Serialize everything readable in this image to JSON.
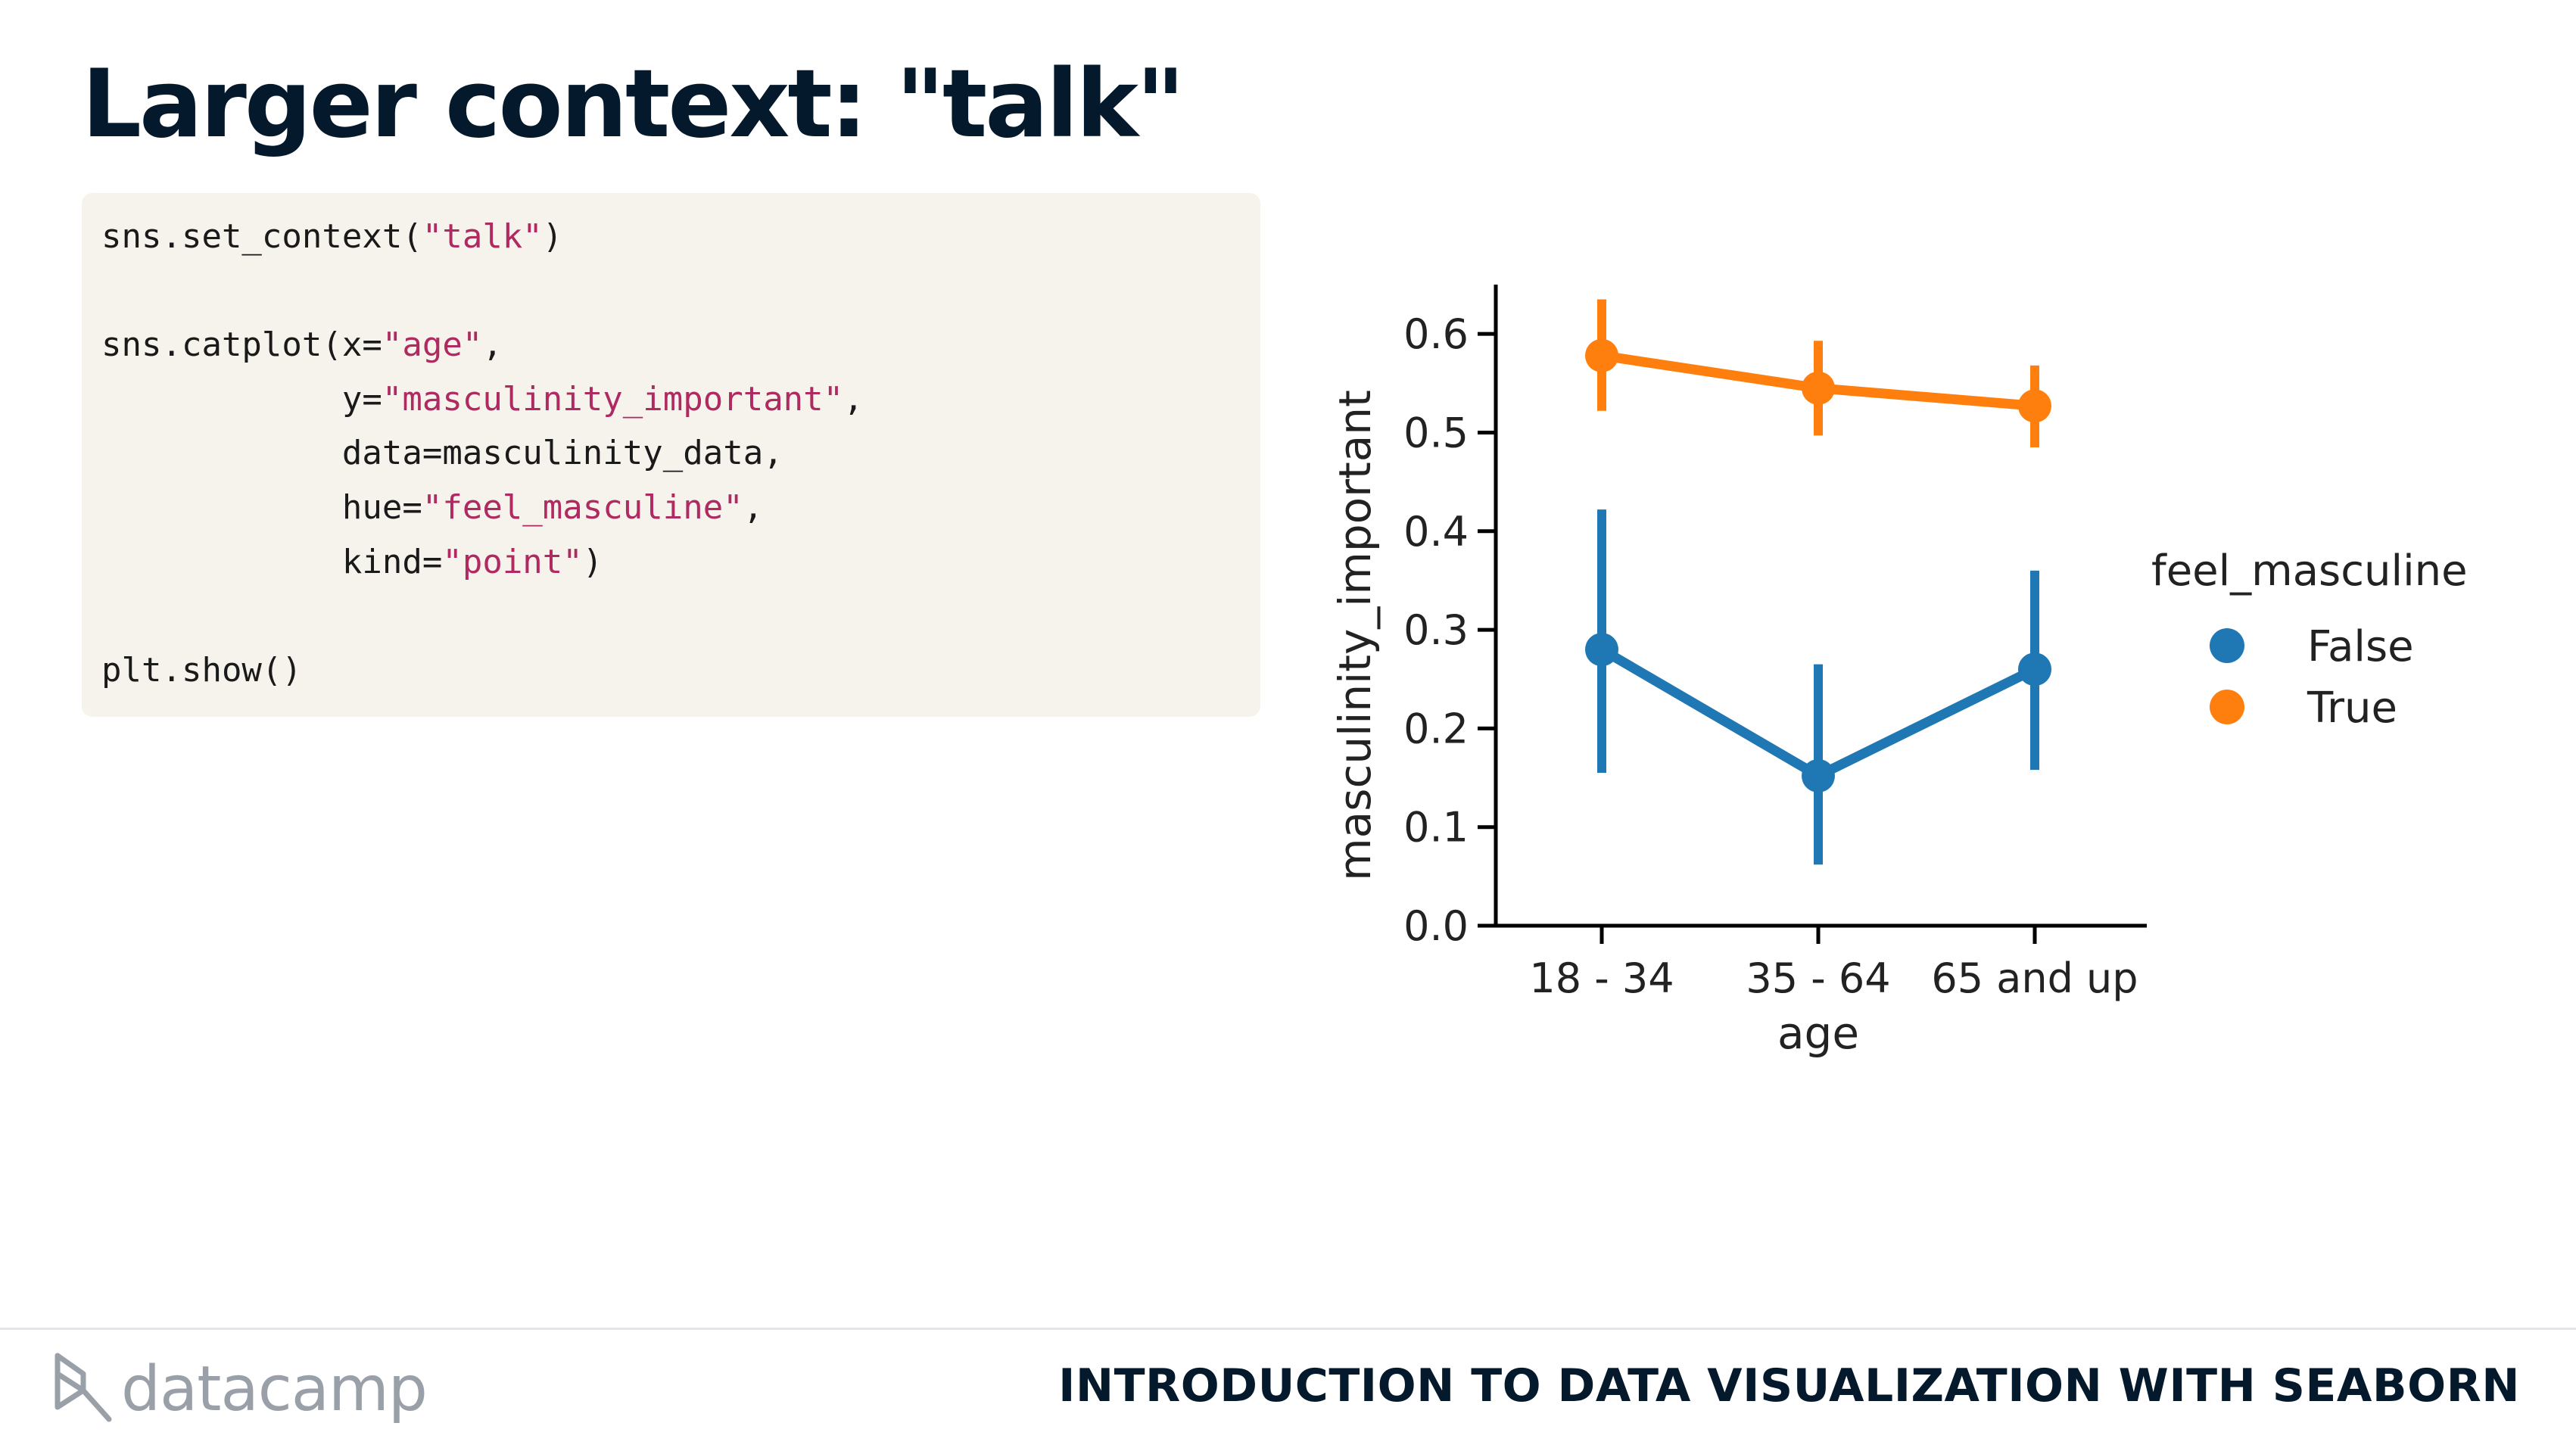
{
  "slide": {
    "title": "Larger context: \"talk\""
  },
  "code": {
    "lines": [
      [
        {
          "t": "sns.set_context("
        },
        {
          "t": "\"talk\"",
          "s": 1
        },
        {
          "t": ")"
        }
      ],
      [],
      [
        {
          "t": "sns.catplot(x="
        },
        {
          "t": "\"age\"",
          "s": 1
        },
        {
          "t": ","
        }
      ],
      [
        {
          "t": "            y="
        },
        {
          "t": "\"masculinity_important\"",
          "s": 1
        },
        {
          "t": ","
        }
      ],
      [
        {
          "t": "            data=masculinity_data,"
        }
      ],
      [
        {
          "t": "            hue="
        },
        {
          "t": "\"feel_masculine\"",
          "s": 1
        },
        {
          "t": ","
        }
      ],
      [
        {
          "t": "            kind="
        },
        {
          "t": "\"point\"",
          "s": 1
        },
        {
          "t": ")"
        }
      ],
      [],
      [
        {
          "t": "plt.show()"
        }
      ]
    ]
  },
  "chart_data": {
    "type": "line",
    "subtype": "point plot with error bars",
    "categories": [
      "18 - 34",
      "35 - 64",
      "65 and up"
    ],
    "xlabel": "age",
    "ylabel": "masculinity_important",
    "ylim": [
      0.0,
      0.65
    ],
    "yticks": [
      "0.0",
      "0.1",
      "0.2",
      "0.3",
      "0.4",
      "0.5",
      "0.6"
    ],
    "grid": false,
    "legend": {
      "title": "feel_masculine",
      "position": "right"
    },
    "series": [
      {
        "name": "False",
        "color": "#1f77b4",
        "values": [
          0.28,
          0.152,
          0.26
        ],
        "ci_low": [
          0.155,
          0.062,
          0.158
        ],
        "ci_high": [
          0.422,
          0.265,
          0.36
        ]
      },
      {
        "name": "True",
        "color": "#ff7f0e",
        "values": [
          0.578,
          0.545,
          0.527
        ],
        "ci_low": [
          0.522,
          0.497,
          0.485
        ],
        "ci_high": [
          0.635,
          0.593,
          0.568
        ]
      }
    ]
  },
  "footer": {
    "brand": "datacamp",
    "course": "INTRODUCTION TO DATA VISUALIZATION WITH SEABORN"
  }
}
